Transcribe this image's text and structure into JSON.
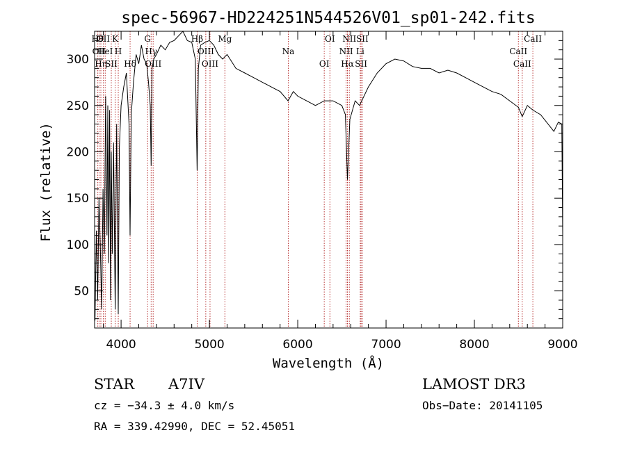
{
  "chart_data": {
    "type": "line",
    "title": "spec-56967-HD224251N544526V01_sp01-242.fits",
    "xlabel": "Wavelength (Å)",
    "ylabel": "Flux (relative)",
    "xlim": [
      3700,
      9000
    ],
    "ylim": [
      10,
      330
    ],
    "xticks": [
      4000,
      5000,
      6000,
      7000,
      8000,
      9000
    ],
    "yticks": [
      50,
      100,
      150,
      200,
      250,
      300
    ],
    "series": [
      {
        "name": "spectrum",
        "x": [
          3705,
          3720,
          3735,
          3750,
          3765,
          3780,
          3795,
          3810,
          3825,
          3840,
          3850,
          3860,
          3870,
          3880,
          3889,
          3900,
          3915,
          3933,
          3950,
          3968,
          3980,
          4000,
          4030,
          4060,
          4090,
          4102,
          4115,
          4140,
          4170,
          4200,
          4230,
          4260,
          4290,
          4310,
          4330,
          4340,
          4350,
          4370,
          4400,
          4450,
          4500,
          4550,
          4600,
          4650,
          4700,
          4750,
          4800,
          4840,
          4861,
          4875,
          4900,
          4950,
          5000,
          5050,
          5100,
          5150,
          5200,
          5300,
          5400,
          5500,
          5600,
          5700,
          5800,
          5890,
          5950,
          6000,
          6100,
          6200,
          6300,
          6400,
          6500,
          6540,
          6563,
          6590,
          6650,
          6700,
          6800,
          6900,
          7000,
          7100,
          7200,
          7300,
          7400,
          7500,
          7600,
          7700,
          7800,
          7900,
          8000,
          8100,
          8200,
          8300,
          8400,
          8498,
          8542,
          8600,
          8662,
          8750,
          8850,
          8900,
          8950,
          8990,
          9000
        ],
        "y": [
          18,
          115,
          40,
          150,
          95,
          30,
          160,
          90,
          260,
          110,
          250,
          80,
          245,
          40,
          200,
          90,
          210,
          30,
          230,
          25,
          205,
          250,
          270,
          285,
          230,
          110,
          240,
          275,
          305,
          295,
          315,
          300,
          295,
          275,
          250,
          185,
          290,
          300,
          305,
          315,
          310,
          318,
          320,
          325,
          330,
          320,
          318,
          300,
          180,
          290,
          315,
          318,
          320,
          315,
          305,
          300,
          305,
          290,
          285,
          280,
          275,
          270,
          265,
          255,
          265,
          260,
          255,
          250,
          255,
          255,
          250,
          240,
          170,
          235,
          255,
          250,
          270,
          285,
          295,
          300,
          298,
          292,
          290,
          290,
          285,
          288,
          285,
          280,
          275,
          270,
          265,
          262,
          255,
          248,
          238,
          250,
          245,
          240,
          228,
          222,
          232,
          230,
          110
        ]
      }
    ],
    "lines": [
      {
        "x": 3734,
        "label": "Hθ"
      },
      {
        "x": 3750,
        "label": "OII"
      },
      {
        "x": 3771,
        "label": "Hη"
      },
      {
        "x": 3798,
        "label": "OII"
      },
      {
        "x": 3820,
        "label": "HeI"
      },
      {
        "x": 3889,
        "label": "SII"
      },
      {
        "x": 3933,
        "label": "K"
      },
      {
        "x": 3968,
        "label": "H"
      },
      {
        "x": 4102,
        "label": "Hδ"
      },
      {
        "x": 4300,
        "label": "G"
      },
      {
        "x": 4340,
        "label": "Hγ"
      },
      {
        "x": 4363,
        "label": "OIII"
      },
      {
        "x": 4861,
        "label": "Hβ"
      },
      {
        "x": 4959,
        "label": "OIII"
      },
      {
        "x": 5007,
        "label": "OIII"
      },
      {
        "x": 5175,
        "label": "Mg"
      },
      {
        "x": 5893,
        "label": "Na"
      },
      {
        "x": 6300,
        "label": "OI"
      },
      {
        "x": 6364,
        "label": "OI"
      },
      {
        "x": 6548,
        "label": "NII"
      },
      {
        "x": 6563,
        "label": "Hα"
      },
      {
        "x": 6584,
        "label": "NII"
      },
      {
        "x": 6708,
        "label": "Li"
      },
      {
        "x": 6717,
        "label": "SII"
      },
      {
        "x": 6731,
        "label": "SII"
      },
      {
        "x": 8498,
        "label": "CaII"
      },
      {
        "x": 8542,
        "label": "CaII"
      },
      {
        "x": 8662,
        "label": "CaII"
      }
    ]
  },
  "info": {
    "object_type": "STAR",
    "subclass": "A7IV",
    "survey": "LAMOST DR3",
    "redshift": "cz = −34.3 ± 4.0 km/s",
    "obs_date": "Obs−Date: 20141105",
    "coords": "RA = 339.42990, DEC =  52.45051"
  }
}
